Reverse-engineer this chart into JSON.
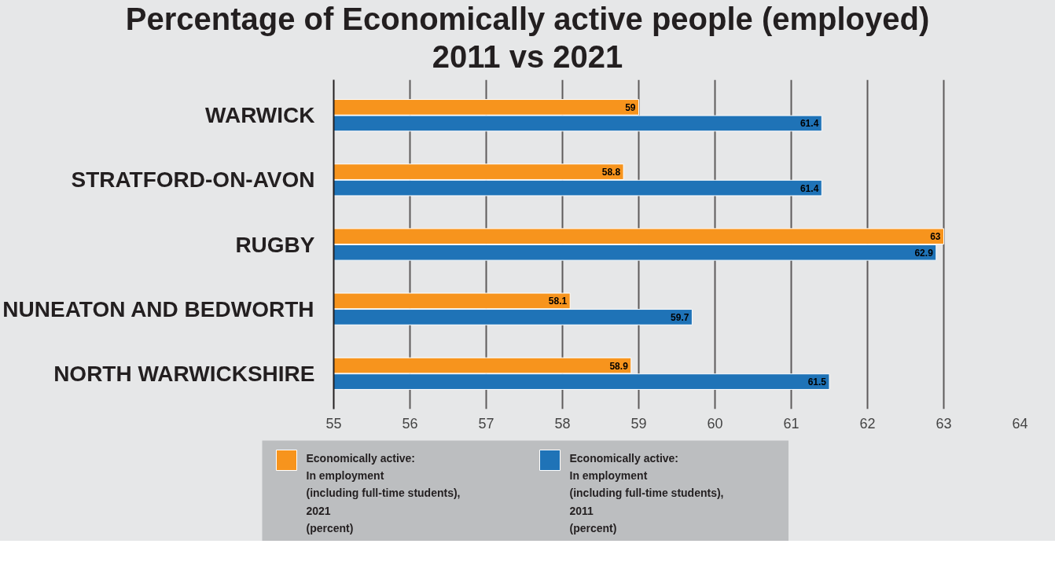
{
  "chart_data": {
    "type": "bar",
    "orientation": "horizontal",
    "title": "Percentage of Economically active people (employed)\n2011 vs 2021",
    "categories": [
      "WARWICK",
      "STRATFORD-ON-AVON",
      "RUGBY",
      "NUNEATON AND BEDWORTH",
      "NORTH WARWICKSHIRE"
    ],
    "series": [
      {
        "name": "Economically active:\nIn employment\n(including full-time students),\n2021\n(percent)",
        "color": "#f7941d",
        "values": [
          59,
          58.8,
          63,
          58.1,
          58.9
        ]
      },
      {
        "name": "Economically active:\nIn employment\n(including full-time students),\n2011\n(percent)",
        "color": "#1f73b7",
        "values": [
          61.4,
          61.4,
          62.9,
          59.7,
          61.5
        ]
      }
    ],
    "xlim": [
      55,
      64
    ],
    "xticks": [
      55,
      56,
      57,
      58,
      59,
      60,
      61,
      62,
      63,
      64
    ],
    "grid": "x",
    "legend": "bottom",
    "data_labels": true
  }
}
